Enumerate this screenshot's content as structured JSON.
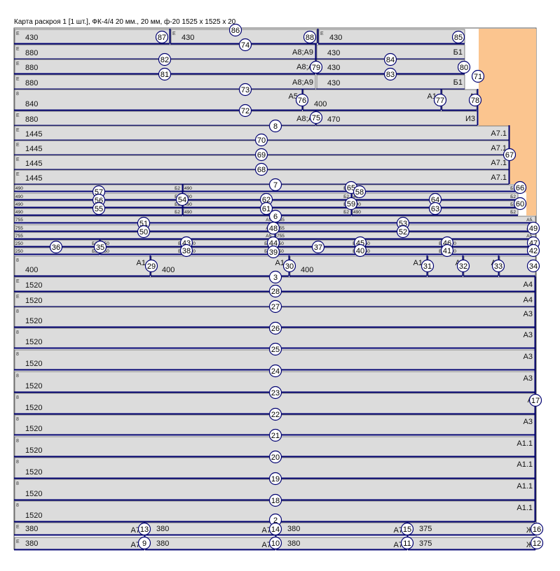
{
  "title": "Карта раскроя 1 [1 шт.], ФК-4/4 20 мм., 20 мм, ф-20 1525 х 1525 х 20",
  "colors": {
    "board": "#ffffff",
    "part": "#dcdcdc",
    "waste": "#fbc58f",
    "cut": "#000070",
    "outline": "#555555"
  },
  "parts": [
    {
      "label": "430",
      "code": "Б",
      "edge": "E"
    },
    {
      "label": "430",
      "code": "Б",
      "edge": "E"
    },
    {
      "label": "430",
      "code": "Б",
      "edge": "E"
    },
    {
      "label": "880",
      "code": "A8;A9",
      "edge": "E"
    },
    {
      "label": "430",
      "code": "Б1",
      "edge": ""
    },
    {
      "label": "880",
      "code": "A8;A",
      "edge": "E"
    },
    {
      "label": "430",
      "code": "Б",
      "edge": ""
    },
    {
      "label": "880",
      "code": "A8;A9",
      "edge": "E"
    },
    {
      "label": "430",
      "code": "Б1",
      "edge": ""
    },
    {
      "label": "840",
      "code": "A5.",
      "edge": "8"
    },
    {
      "label": "400",
      "code": "A1.",
      "edge": ""
    },
    {
      "label": "",
      "code": "A",
      "edge": ""
    },
    {
      "label": "880",
      "code": "A8;A",
      "edge": "E"
    },
    {
      "label": "470",
      "code": "И3",
      "edge": ""
    },
    {
      "label": "1445",
      "code": "A7.1",
      "edge": "E"
    },
    {
      "label": "1445",
      "code": "A7.1",
      "edge": "E"
    },
    {
      "label": "1445",
      "code": "A7.1",
      "edge": "E"
    },
    {
      "label": "1445",
      "code": "A7.1",
      "edge": "E"
    },
    {
      "label": "490",
      "code": "Б2",
      "edge": ""
    },
    {
      "label": "490",
      "code": "Б2",
      "edge": ""
    },
    {
      "label": "490",
      "code": "Б2",
      "edge": ""
    },
    {
      "label": "490",
      "code": "Б2",
      "edge": ""
    },
    {
      "label": "490",
      "code": "Б2",
      "edge": ""
    },
    {
      "label": "490",
      "code": "Б2",
      "edge": ""
    },
    {
      "label": "490",
      "code": "Б2",
      "edge": ""
    },
    {
      "label": "490",
      "code": "Б2",
      "edge": ""
    },
    {
      "label": "490",
      "code": "Б2",
      "edge": ""
    },
    {
      "label": "490",
      "code": "Б2",
      "edge": ""
    },
    {
      "label": "490",
      "code": "Б2",
      "edge": ""
    },
    {
      "label": "490",
      "code": "Б2",
      "edge": ""
    },
    {
      "label": "755",
      "code": "A5.",
      "edge": ""
    },
    {
      "label": "755",
      "code": "A5.",
      "edge": ""
    },
    {
      "label": "755",
      "code": "A5.",
      "edge": ""
    },
    {
      "label": "755",
      "code": "A5.",
      "edge": ""
    },
    {
      "label": "755",
      "code": "A5.",
      "edge": ""
    },
    {
      "label": "755",
      "code": "A5.",
      "edge": ""
    },
    {
      "label": "250",
      "code": "Б3",
      "edge": ""
    },
    {
      "label": "250",
      "code": "Б3",
      "edge": ""
    },
    {
      "label": "250",
      "code": "Б3",
      "edge": ""
    },
    {
      "label": "250",
      "code": "Б3",
      "edge": ""
    },
    {
      "label": "250",
      "code": "Б3",
      "edge": ""
    },
    {
      "label": "250",
      "code": "Б3",
      "edge": ""
    },
    {
      "label": "250",
      "code": "Б3",
      "edge": ""
    },
    {
      "label": "250",
      "code": "Б3",
      "edge": ""
    },
    {
      "label": "250",
      "code": "Б3",
      "edge": ""
    },
    {
      "label": "250",
      "code": "Б3",
      "edge": ""
    },
    {
      "label": "250",
      "code": "Б3",
      "edge": ""
    },
    {
      "label": "250",
      "code": "Б3",
      "edge": ""
    },
    {
      "label": "400",
      "code": "A1.",
      "edge": "8"
    },
    {
      "label": "400",
      "code": "A1.",
      "edge": ""
    },
    {
      "label": "400",
      "code": "A1.",
      "edge": ""
    },
    {
      "label": "",
      "code": "A",
      "edge": ""
    },
    {
      "label": "",
      "code": "A",
      "edge": ""
    },
    {
      "label": "",
      "code": "A",
      "edge": ""
    },
    {
      "label": "1520",
      "code": "A4",
      "edge": "E"
    },
    {
      "label": "1520",
      "code": "A4",
      "edge": "E"
    },
    {
      "label": "1520",
      "code": "A3",
      "edge": "8"
    },
    {
      "label": "1520",
      "code": "A3",
      "edge": "8"
    },
    {
      "label": "1520",
      "code": "A3",
      "edge": "8"
    },
    {
      "label": "1520",
      "code": "A3",
      "edge": "8"
    },
    {
      "label": "1520",
      "code": "A",
      "edge": "8"
    },
    {
      "label": "1520",
      "code": "A3",
      "edge": "8"
    },
    {
      "label": "1520",
      "code": "A1.1",
      "edge": "8"
    },
    {
      "label": "1520",
      "code": "A1.1",
      "edge": "8"
    },
    {
      "label": "1520",
      "code": "A1.1",
      "edge": "8"
    },
    {
      "label": "1520",
      "code": "A1.1",
      "edge": "8"
    },
    {
      "label": "380",
      "code": "A7.",
      "edge": "E"
    },
    {
      "label": "380",
      "code": "A7.",
      "edge": ""
    },
    {
      "label": "380",
      "code": "A7.",
      "edge": ""
    },
    {
      "label": "375",
      "code": "Ж",
      "edge": ""
    },
    {
      "label": "380",
      "code": "A7.",
      "edge": "E"
    },
    {
      "label": "380",
      "code": "A7.",
      "edge": ""
    },
    {
      "label": "380",
      "code": "A7.",
      "edge": ""
    },
    {
      "label": "375",
      "code": "Ж",
      "edge": ""
    }
  ],
  "cut_numbers": [
    "86",
    "87",
    "88",
    "85",
    "74",
    "82",
    "84",
    "79",
    "80",
    "81",
    "83",
    "71",
    "73",
    "76",
    "77",
    "78",
    "72",
    "75",
    "8",
    "70",
    "67",
    "69",
    "68",
    "7",
    "66",
    "65",
    "58",
    "57",
    "54",
    "62",
    "64",
    "56",
    "59",
    "60",
    "55",
    "61",
    "63",
    "6",
    "51",
    "53",
    "48",
    "49",
    "50",
    "52",
    "43",
    "45",
    "46",
    "47",
    "36",
    "35",
    "44",
    "37",
    "39",
    "38",
    "40",
    "41",
    "42",
    "29",
    "30",
    "31",
    "32",
    "33",
    "34",
    "3",
    "28",
    "27",
    "26",
    "25",
    "24",
    "23",
    "17",
    "22",
    "21",
    "20",
    "19",
    "18",
    "2",
    "13",
    "14",
    "15",
    "16",
    "9",
    "10",
    "11",
    "12"
  ]
}
